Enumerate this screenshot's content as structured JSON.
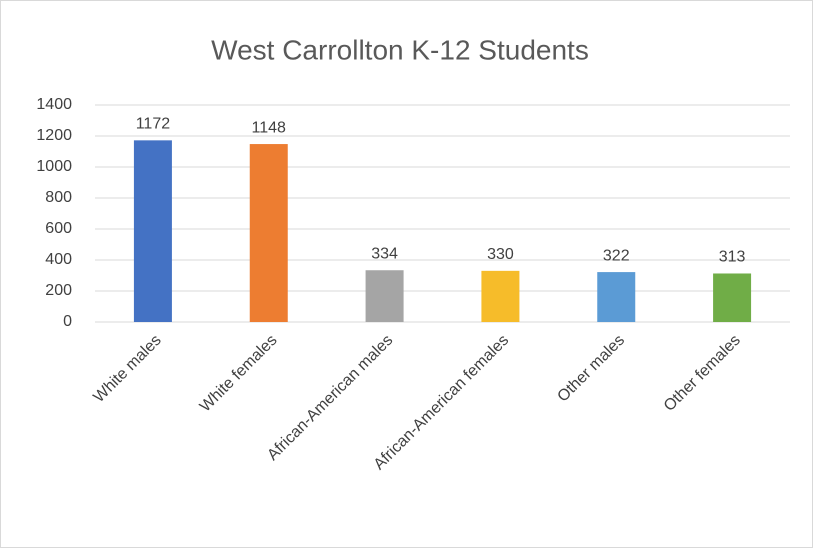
{
  "chart_data": {
    "type": "bar",
    "title": "West Carrollton K-12 Students",
    "categories": [
      "White males",
      "White females",
      "African-American males",
      "African-American females",
      "Other males",
      "Other females"
    ],
    "values": [
      1172,
      1148,
      334,
      330,
      322,
      313
    ],
    "colors": [
      "#4472c4",
      "#ed7d31",
      "#a5a5a5",
      "#f6bc2a",
      "#5b9bd5",
      "#70ad47"
    ],
    "ylim": [
      0,
      1400
    ],
    "yticks": [
      0,
      200,
      400,
      600,
      800,
      1000,
      1200,
      1400
    ],
    "grid": true
  }
}
